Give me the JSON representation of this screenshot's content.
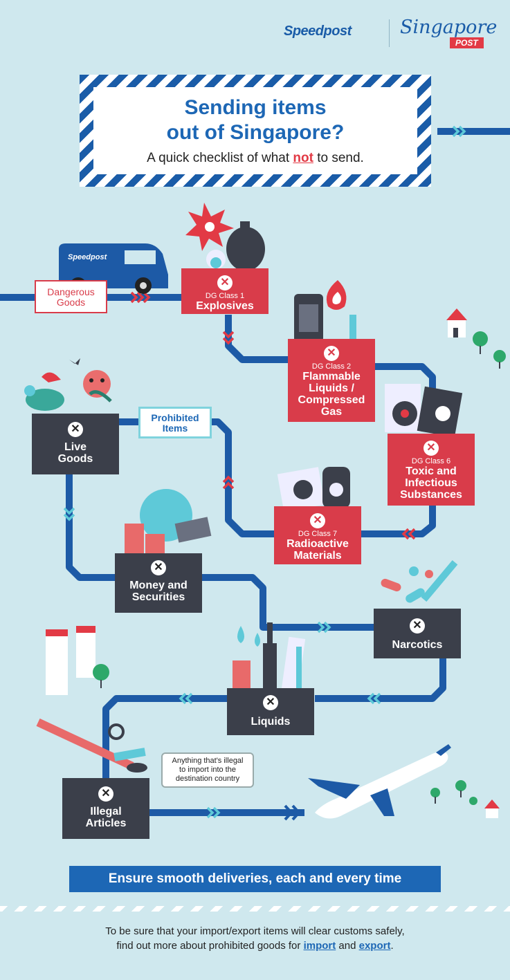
{
  "logos": {
    "speedpost": "Speedpost",
    "singapore": "Singapore",
    "post": "POST"
  },
  "title": {
    "line1": "Sending items",
    "line2": "out of Singapore?"
  },
  "subtitle": {
    "before": "A quick checklist of what ",
    "highlight": "not",
    "after": " to send."
  },
  "van_label": "Speedpost",
  "tags": {
    "dangerous": [
      "Dangerous",
      "Goods"
    ],
    "prohibited": [
      "Prohibited",
      "Items"
    ]
  },
  "boxes": {
    "dg1": {
      "cls": "DG Class 1",
      "name": [
        "Explosives"
      ]
    },
    "dg2": {
      "cls": "DG Class 2",
      "name": [
        "Flammable",
        "Liquids /",
        "Compressed",
        "Gas"
      ]
    },
    "dg6": {
      "cls": "DG Class 6",
      "name": [
        "Toxic and",
        "Infectious",
        "Substances"
      ]
    },
    "dg7": {
      "cls": "DG Class 7",
      "name": [
        "Radioactive",
        "Materials"
      ]
    },
    "live": {
      "name": [
        "Live",
        "Goods"
      ]
    },
    "money": {
      "name": [
        "Money and",
        "Securities"
      ]
    },
    "narcotics": {
      "name": [
        "Narcotics"
      ]
    },
    "liquids": {
      "name": [
        "Liquids"
      ]
    },
    "illegal": {
      "name": [
        "Illegal",
        "Articles"
      ]
    }
  },
  "bubble": [
    "Anything that's illegal",
    "to import into the",
    "destination country"
  ],
  "banner": "Ensure smooth deliveries, each and every time",
  "footer": {
    "line1": "To be sure that your import/export items will clear customs safely,",
    "line2_before": "find out more about prohibited goods for ",
    "link_import": "import",
    "and": " and ",
    "link_export": "export",
    "end": "."
  },
  "colors": {
    "path": "#1d5aa6",
    "red": "#d93c4a",
    "dark": "#3b3f4a",
    "bg": "#cfe8ee"
  }
}
